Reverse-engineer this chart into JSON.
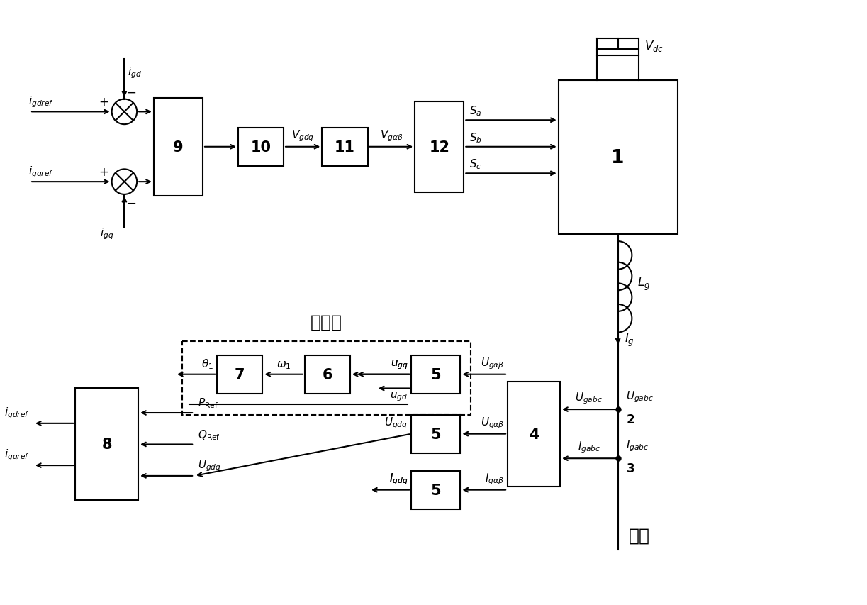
{
  "bg_color": "#ffffff",
  "fig_width": 12.23,
  "fig_height": 8.54,
  "dpi": 100,
  "lw": 1.5,
  "fs_label": 11,
  "fs_block": 15,
  "fs_chinese": 18
}
